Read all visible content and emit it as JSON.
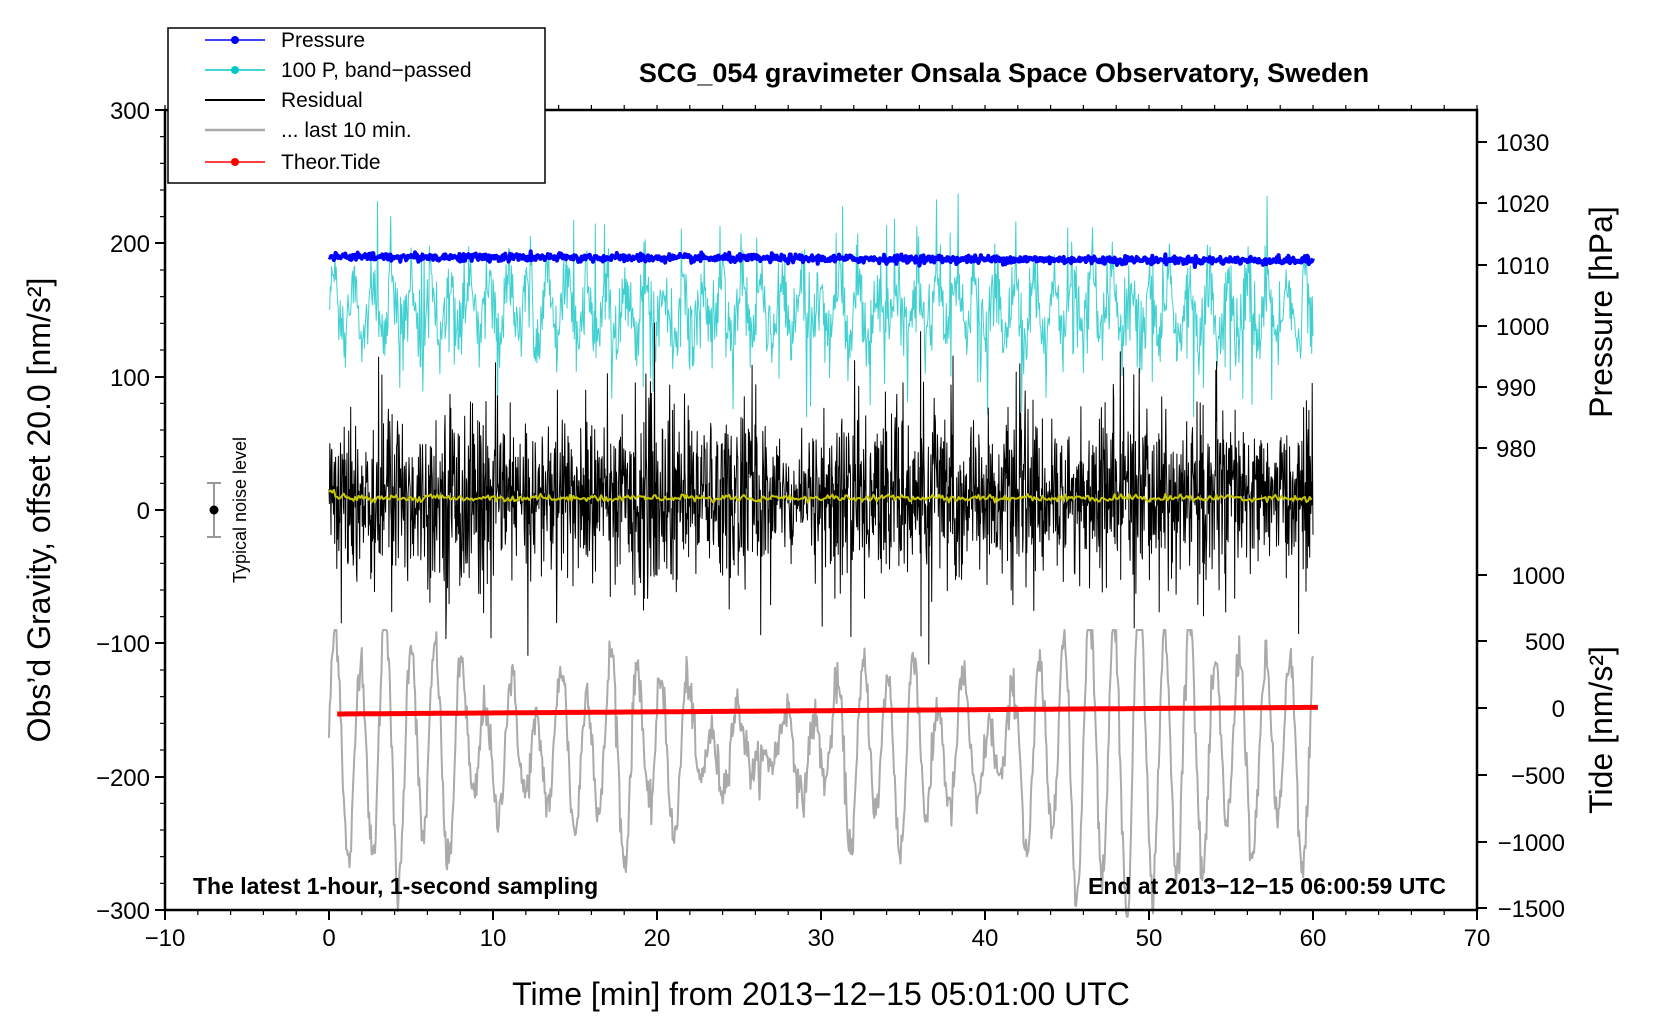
{
  "chart_data": {
    "type": "line",
    "title": "SCG_054 gravimeter Onsala Space Observatory, Sweden",
    "xlabel": "Time [min] from 2013−12−15 05:01:00 UTC",
    "ylabel_left": "Obs’d Gravity, offset 20.0 [nm/s²]",
    "ylabel_right_top": "Pressure [hPa]",
    "ylabel_right_bottom": "Tide [nm/s²]",
    "xlim": [
      -10,
      70
    ],
    "ylim_left": [
      -300,
      300
    ],
    "x_ticks": [
      "−10",
      "0",
      "10",
      "20",
      "30",
      "40",
      "50",
      "60",
      "70"
    ],
    "y_ticks_left": [
      "300",
      "200",
      "100",
      "0",
      "−100",
      "−200",
      "−300"
    ],
    "y_ticks_pressure": [
      "1030",
      "1020",
      "1010",
      "1000",
      "990",
      "980"
    ],
    "y_ticks_tide": [
      "1000",
      "500",
      "0",
      "−500",
      "−1000",
      "−1500"
    ],
    "note_left": "The latest 1-hour, 1-second sampling",
    "note_right": "End at 2013−12−15 06:00:59 UTC",
    "noise_label": "Typical noise level",
    "noise_range": [
      -20,
      20
    ],
    "legend": [
      {
        "label": "Pressure",
        "color": "#0000ff",
        "marker": "dot"
      },
      {
        "label": "100 P, band−passed",
        "color": "#00c8c8",
        "marker": "dot"
      },
      {
        "label": "Residual",
        "color": "#000000",
        "marker": "none"
      },
      {
        "label": "... last 10 min.",
        "color": "#aaaaaa",
        "marker": "none"
      },
      {
        "label": "Theor.Tide",
        "color": "#ff0000",
        "marker": "dot"
      }
    ],
    "series": [
      {
        "name": "Pressure",
        "color": "#0000ff",
        "axis": "left",
        "x_range": [
          0,
          60
        ],
        "y_start": 190,
        "y_end": 187,
        "noise": 1.5
      },
      {
        "name": "100 P, band−passed",
        "color": "#40d0d0",
        "axis": "left",
        "x_range": [
          0,
          60
        ],
        "y_mean": 150,
        "y_min": 70,
        "y_max": 240
      },
      {
        "name": "Residual",
        "color": "#000000",
        "axis": "left",
        "x_range": [
          0,
          60
        ],
        "y_mean": 10,
        "y_min": -120,
        "y_max": 140
      },
      {
        "name": "Residual smoothed",
        "color": "#c8c800",
        "axis": "left",
        "x_range": [
          0,
          60
        ],
        "y_mean": 9
      },
      {
        "name": "... last 10 min.",
        "color": "#aaaaaa",
        "axis": "left",
        "x_range": [
          0,
          60
        ],
        "y_mean": -180,
        "y_min": -305,
        "y_max": -90
      },
      {
        "name": "Theor.Tide",
        "color": "#ff0000",
        "axis": "left",
        "x_range": [
          0.5,
          60.5
        ],
        "y_start": -153,
        "y_end": -148
      }
    ]
  }
}
